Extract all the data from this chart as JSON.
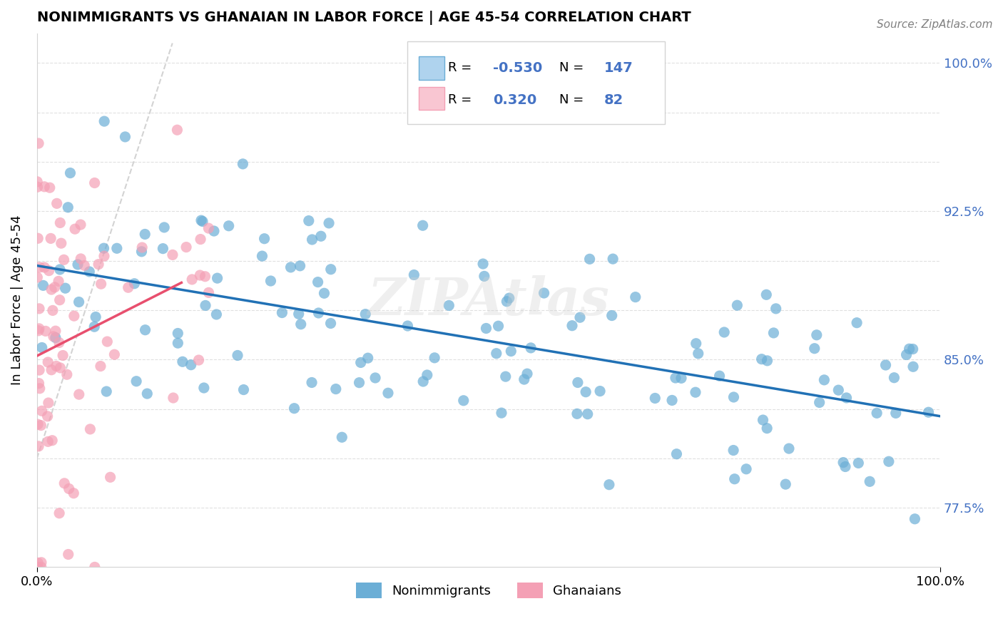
{
  "title": "NONIMMIGRANTS VS GHANAIAN IN LABOR FORCE | AGE 45-54 CORRELATION CHART",
  "source": "Source: ZipAtlas.com",
  "ylabel": "In Labor Force | Age 45-54",
  "xlim": [
    0.0,
    1.0
  ],
  "ylim": [
    0.745,
    1.015
  ],
  "blue_color": "#6baed6",
  "pink_color": "#f4a0b5",
  "blue_line_color": "#2171b5",
  "pink_line_color": "#e84f6e",
  "R_blue": -0.53,
  "N_blue": 147,
  "R_pink": 0.32,
  "N_pink": 82,
  "watermark": "ZIPAtlas",
  "seed": 42
}
